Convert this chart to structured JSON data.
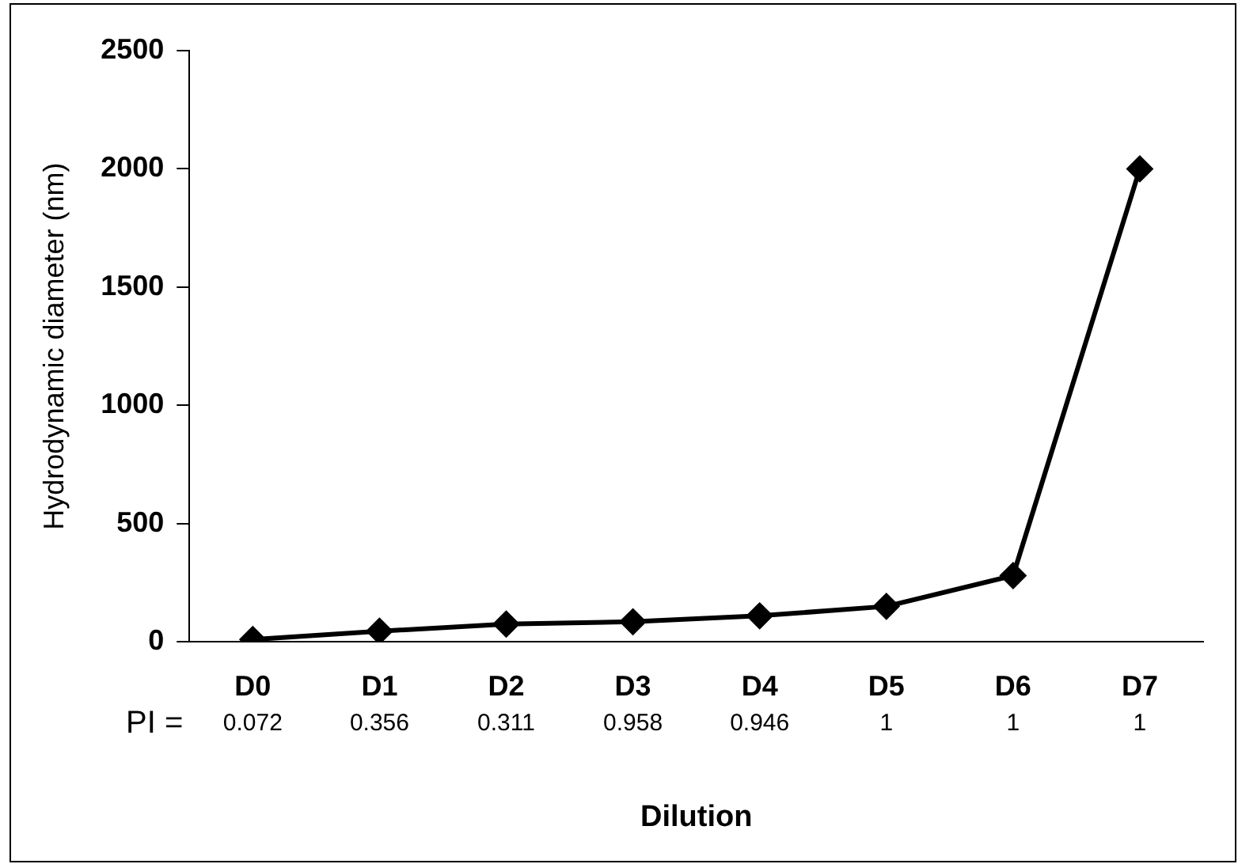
{
  "chart_data": {
    "type": "line",
    "xlabel": "Dilution",
    "ylabel": "Hydrodynamic diameter (nm)",
    "categories": [
      "D0",
      "D1",
      "D2",
      "D3",
      "D4",
      "D5",
      "D6",
      "D7"
    ],
    "series": [
      {
        "color": "#000000",
        "values": [
          10,
          45,
          75,
          85,
          110,
          150,
          280,
          2000
        ]
      }
    ],
    "ylim": [
      0,
      2500
    ],
    "yticks": [
      0,
      500,
      1000,
      1500,
      2000,
      2500
    ],
    "grid": false,
    "legend": false,
    "marker": "diamond",
    "line_style": "solid",
    "annotations": [
      "PI =",
      "0.072",
      "0.356",
      "0.311",
      "0.958",
      "0.946",
      "1",
      "1",
      "1"
    ]
  }
}
